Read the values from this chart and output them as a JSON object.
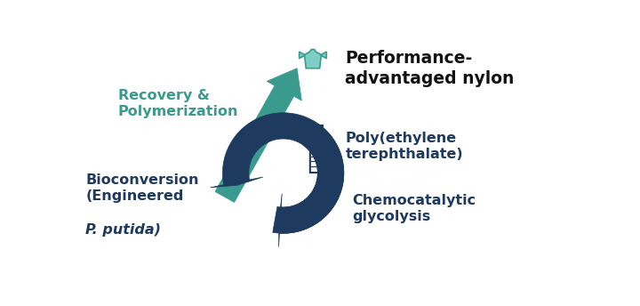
{
  "bg_color": "#ffffff",
  "arrow_dark_color": "#1e3a5f",
  "arrow_teal_color": "#3a9a8e",
  "tshirt_color": "#7ecec4",
  "tshirt_edge_color": "#3a9a8e",
  "bottle_color": "#1e3a5f",
  "labels": {
    "performance": "Performance-\nadvantaged nylon",
    "pet": "Poly(ethylene\nterephthalate)",
    "chemo": "Chemocatalytic\nglycolysis",
    "recovery": "Recovery &\nPolymerization"
  },
  "label_colors": {
    "performance": "#111111",
    "pet": "#1e3a5f",
    "chemo": "#1e3a5f",
    "bio_main": "#1e3a5f",
    "bio_italic": "#1e3a5f",
    "recovery": "#3a9a8e"
  },
  "figsize": [
    7.2,
    3.44
  ],
  "dpi": 100
}
